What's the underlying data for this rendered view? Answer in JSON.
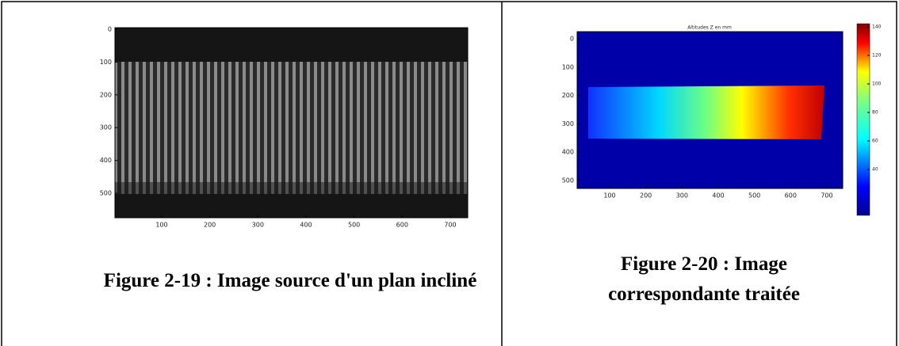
{
  "figures": [
    {
      "xticks": [
        100,
        200,
        300,
        400,
        500,
        600,
        700
      ],
      "yticks": [
        0,
        100,
        200,
        300,
        400,
        500
      ],
      "caption": "Figure 2-19 : Image source d'un plan incliné"
    },
    {
      "title": "Altitudes Z en mm",
      "xticks": [
        100,
        200,
        300,
        400,
        500,
        600,
        700
      ],
      "yticks": [
        0,
        100,
        200,
        300,
        400,
        500
      ],
      "colorbar_ticks": [
        40,
        60,
        80,
        100,
        120,
        140
      ],
      "caption": "Figure 2-20 : Image correspondante traitée"
    }
  ]
}
